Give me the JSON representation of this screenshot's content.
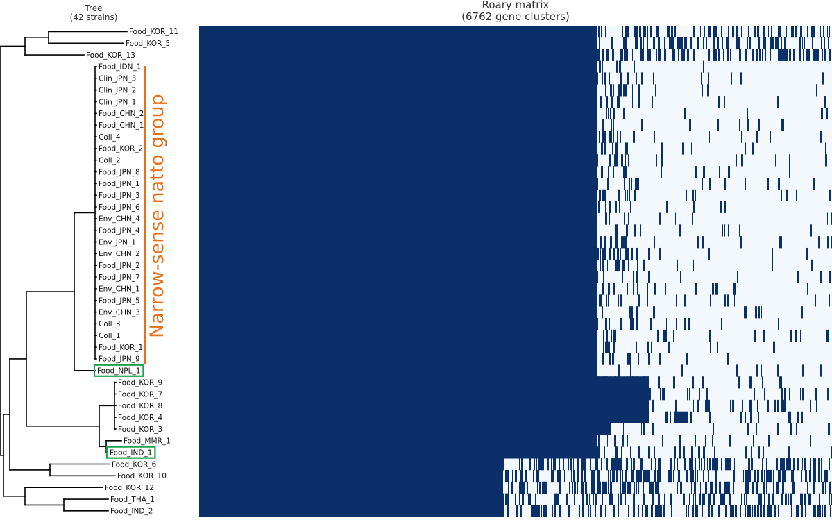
{
  "tree_panel": {
    "title_line1": "Tree",
    "title_line2": "(42 strains)"
  },
  "matrix_panel": {
    "title_line1": "Roary matrix",
    "title_line2": "(6762 gene clusters)"
  },
  "group_annotation": {
    "label": "Narrow-sense natto group",
    "color": "#E8701A"
  },
  "highlight_color": "#1BA34A",
  "colors": {
    "present": "#0B3069",
    "absent": "#F3F8FD",
    "branch": "#000000"
  },
  "strains": [
    {
      "name": "Food_KOR_11",
      "highlight": false
    },
    {
      "name": "Food_KOR_5",
      "highlight": false
    },
    {
      "name": "Food_KOR_13",
      "highlight": false
    },
    {
      "name": "Food_IDN_1",
      "highlight": false
    },
    {
      "name": "Clin_JPN_3",
      "highlight": false
    },
    {
      "name": "Clin_JPN_2",
      "highlight": false
    },
    {
      "name": "Clin_JPN_1",
      "highlight": false
    },
    {
      "name": "Food_CHN_2",
      "highlight": false
    },
    {
      "name": "Food_CHN_1",
      "highlight": false
    },
    {
      "name": "Coll_4",
      "highlight": false
    },
    {
      "name": "Food_KOR_2",
      "highlight": false
    },
    {
      "name": "Coll_2",
      "highlight": false
    },
    {
      "name": "Food_JPN_8",
      "highlight": false
    },
    {
      "name": "Food_JPN_1",
      "highlight": false
    },
    {
      "name": "Food_JPN_3",
      "highlight": false
    },
    {
      "name": "Food_JPN_6",
      "highlight": false
    },
    {
      "name": "Env_CHN_4",
      "highlight": false
    },
    {
      "name": "Food_JPN_4",
      "highlight": false
    },
    {
      "name": "Env_JPN_1",
      "highlight": false
    },
    {
      "name": "Env_CHN_2",
      "highlight": false
    },
    {
      "name": "Food_JPN_2",
      "highlight": false
    },
    {
      "name": "Food_JPN_7",
      "highlight": false
    },
    {
      "name": "Env_CHN_1",
      "highlight": false
    },
    {
      "name": "Food_JPN_5",
      "highlight": false
    },
    {
      "name": "Env_CHN_3",
      "highlight": false
    },
    {
      "name": "Coll_3",
      "highlight": false
    },
    {
      "name": "Coll_1",
      "highlight": false
    },
    {
      "name": "Food_KOR_1",
      "highlight": false
    },
    {
      "name": "Food_JPN_9",
      "highlight": false
    },
    {
      "name": "Food_NPL_1",
      "highlight": true
    },
    {
      "name": "Food_KOR_9",
      "highlight": false
    },
    {
      "name": "Food_KOR_7",
      "highlight": false
    },
    {
      "name": "Food_KOR_8",
      "highlight": false
    },
    {
      "name": "Food_KOR_4",
      "highlight": false
    },
    {
      "name": "Food_KOR_3",
      "highlight": false
    },
    {
      "name": "Food_MMR_1",
      "highlight": false
    },
    {
      "name": "Food_IND_1",
      "highlight": true
    },
    {
      "name": "Food_KOR_6",
      "highlight": false
    },
    {
      "name": "Food_KOR_10",
      "highlight": false
    },
    {
      "name": "Food_KOR_12",
      "highlight": false
    },
    {
      "name": "Food_THA_1",
      "highlight": false
    },
    {
      "name": "Food_IND_2",
      "highlight": false
    }
  ]
}
